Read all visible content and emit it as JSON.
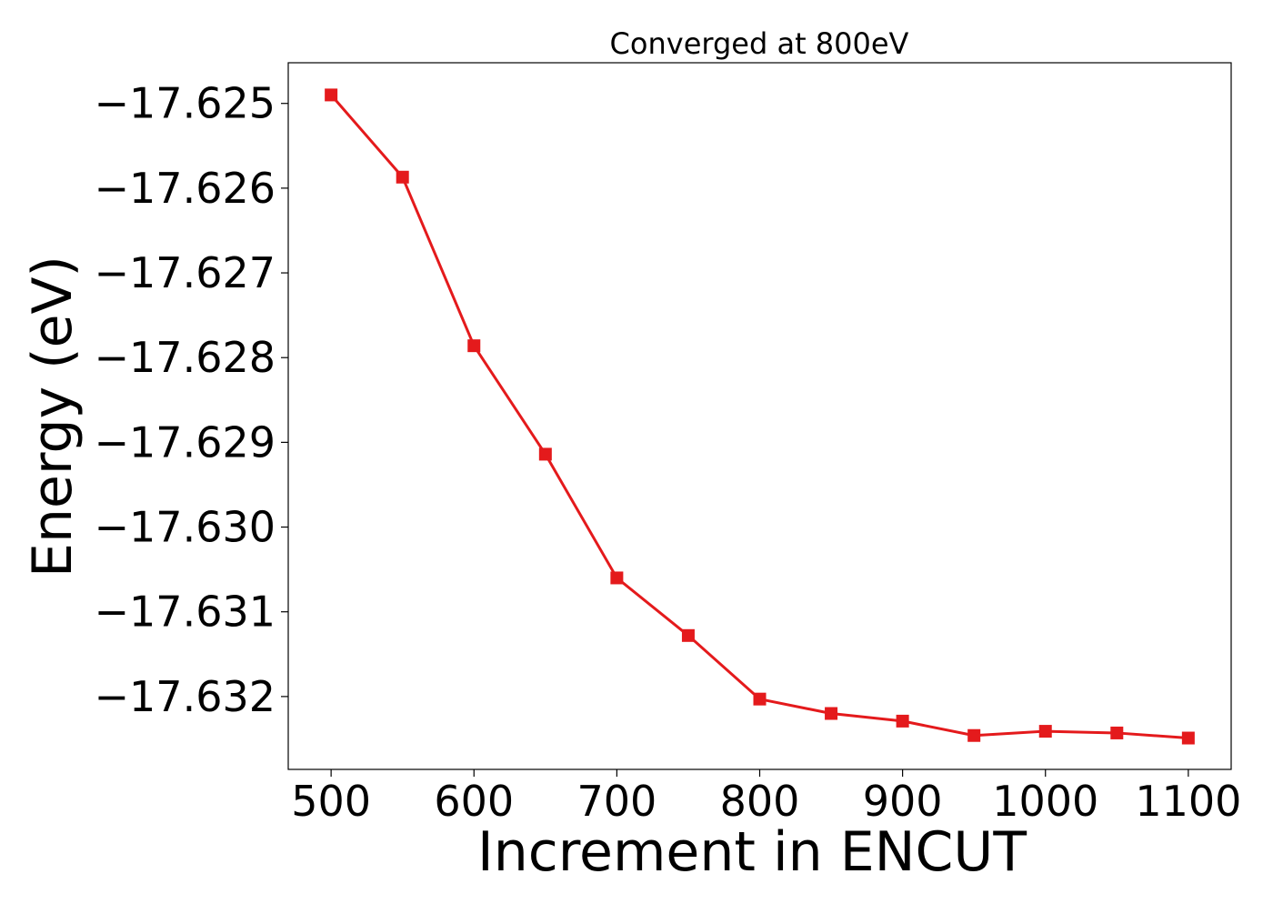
{
  "chart_data": {
    "type": "line",
    "title": "Converged at 800eV",
    "xlabel": "Increment in ENCUT",
    "ylabel": "Energy (eV)",
    "x": [
      500,
      550,
      600,
      650,
      700,
      750,
      800,
      850,
      900,
      950,
      1000,
      1050,
      1100
    ],
    "series": [
      {
        "values": [
          -17.6249,
          -17.62587,
          -17.62786,
          -17.62914,
          -17.6306,
          -17.63128,
          -17.63203,
          -17.6322,
          -17.63229,
          -17.63246,
          -17.63241,
          -17.63243,
          -17.63249
        ],
        "color": "#e41a1c",
        "marker": "square"
      }
    ],
    "xlim": [
      470,
      1130
    ],
    "ylim": [
      -17.63286,
      -17.62452
    ],
    "xticks": [
      500,
      600,
      700,
      800,
      900,
      1000,
      1100
    ],
    "xtick_labels": [
      "500",
      "600",
      "700",
      "800",
      "900",
      "1000",
      "1100"
    ],
    "yticks": [
      -17.625,
      -17.626,
      -17.627,
      -17.628,
      -17.629,
      -17.63,
      -17.631,
      -17.632
    ],
    "ytick_labels": [
      "−17.625",
      "−17.626",
      "−17.627",
      "−17.628",
      "−17.629",
      "−17.630",
      "−17.631",
      "−17.632"
    ],
    "grid": false,
    "legend": false
  }
}
